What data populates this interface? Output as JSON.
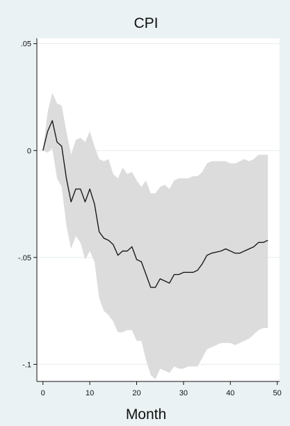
{
  "chart_data": {
    "type": "line",
    "title": "CPI",
    "xlabel": "Month",
    "ylabel": "",
    "xlim": [
      -1.3,
      50.5
    ],
    "ylim": [
      -0.108,
      0.0525
    ],
    "x_ticks": [
      0,
      10,
      20,
      30,
      40,
      50
    ],
    "x_tick_labels": [
      "0",
      "10",
      "20",
      "30",
      "40",
      "50"
    ],
    "y_ticks": [
      0.05,
      0,
      -0.05,
      -0.1
    ],
    "y_tick_labels": [
      ".05",
      "0",
      "-.05",
      "-.1"
    ],
    "grid": true,
    "colors": {
      "background": "#eaf2f3",
      "plot_background": "#ffffff",
      "band": "#dcdcdc",
      "line": "#1a1a1a",
      "grid": "#e3ebee",
      "axis": "#111111"
    },
    "x": [
      0,
      1,
      2,
      3,
      4,
      5,
      6,
      7,
      8,
      9,
      10,
      11,
      12,
      13,
      14,
      15,
      16,
      17,
      18,
      19,
      20,
      21,
      22,
      23,
      24,
      25,
      26,
      27,
      28,
      29,
      30,
      31,
      32,
      33,
      34,
      35,
      36,
      37,
      38,
      39,
      40,
      41,
      42,
      43,
      44,
      45,
      46,
      47,
      48
    ],
    "series": [
      {
        "values": [
          0,
          0.009,
          0.014,
          0.004,
          0.002,
          -0.013,
          -0.024,
          -0.018,
          -0.018,
          -0.024,
          -0.018,
          -0.025,
          -0.038,
          -0.041,
          -0.042,
          -0.044,
          -0.049,
          -0.047,
          -0.047,
          -0.045,
          -0.051,
          -0.052,
          -0.058,
          -0.064,
          -0.064,
          -0.06,
          -0.061,
          -0.062,
          -0.058,
          -0.058,
          -0.057,
          -0.057,
          -0.057,
          -0.056,
          -0.053,
          -0.049,
          -0.048,
          -0.0475,
          -0.047,
          -0.046,
          -0.047,
          -0.048,
          -0.048,
          -0.047,
          -0.046,
          -0.045,
          -0.043,
          -0.043,
          -0.042
        ]
      }
    ],
    "band_upper": [
      0,
      0.018,
      0.027,
      0.022,
      0.021,
      0.009,
      -0.002,
      0.005,
      0.006,
      0.004,
      0.009,
      0.002,
      -0.004,
      -0.005,
      -0.004,
      -0.011,
      -0.013,
      -0.008,
      -0.011,
      -0.01,
      -0.014,
      -0.017,
      -0.014,
      -0.02,
      -0.02,
      -0.017,
      -0.016,
      -0.018,
      -0.014,
      -0.013,
      -0.013,
      -0.013,
      -0.012,
      -0.012,
      -0.01,
      -0.006,
      -0.005,
      -0.005,
      -0.005,
      -0.005,
      -0.006,
      -0.006,
      -0.005,
      -0.004,
      -0.005,
      -0.004,
      -0.002,
      -0.002,
      -0.002
    ],
    "band_lower": [
      0,
      -0.001,
      0.001,
      -0.013,
      -0.017,
      -0.035,
      -0.046,
      -0.04,
      -0.043,
      -0.051,
      -0.047,
      -0.052,
      -0.069,
      -0.075,
      -0.077,
      -0.08,
      -0.085,
      -0.085,
      -0.084,
      -0.084,
      -0.089,
      -0.089,
      -0.098,
      -0.105,
      -0.107,
      -0.102,
      -0.103,
      -0.104,
      -0.101,
      -0.102,
      -0.102,
      -0.101,
      -0.101,
      -0.101,
      -0.097,
      -0.093,
      -0.092,
      -0.091,
      -0.09,
      -0.09,
      -0.09,
      -0.091,
      -0.09,
      -0.089,
      -0.088,
      -0.086,
      -0.084,
      -0.083,
      -0.083
    ]
  }
}
